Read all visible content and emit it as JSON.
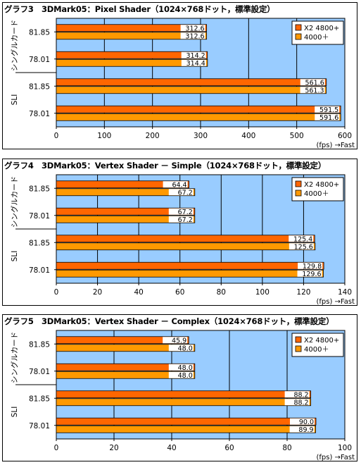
{
  "chart_data": [
    {
      "type": "bar",
      "title": "グラフ3　3DMark05：Pixel Shader（1024×768ドット，標準設定）",
      "categories": [
        "81.85",
        "78.01",
        "81.85",
        "78.01"
      ],
      "groups": [
        "シングルカード",
        "SLI"
      ],
      "series": [
        {
          "name": "X2 4800+",
          "values": [
            312.6,
            314.2,
            561.6,
            591.5
          ]
        },
        {
          "name": "4000＋",
          "values": [
            312.6,
            314.4,
            561.3,
            591.6
          ]
        }
      ],
      "value_labels": [
        [
          "312.6",
          "314.2",
          "561.6",
          "591.5"
        ],
        [
          "312.6",
          "314.4",
          "561.3",
          "591.6"
        ]
      ],
      "xlim": [
        0,
        600
      ],
      "ticks": [
        0,
        100,
        200,
        300,
        400,
        500,
        600
      ],
      "xlabel": "(fps) →Fast",
      "orientation": "horizontal",
      "grid": true,
      "legend": "top-right"
    },
    {
      "type": "bar",
      "title": "グラフ4　3DMark05：Vertex Shader － Simple（1024×768ドット，標準設定）",
      "categories": [
        "81.85",
        "78.01",
        "81.85",
        "78.01"
      ],
      "groups": [
        "シングルカード",
        "SLI"
      ],
      "series": [
        {
          "name": "X2 4800+",
          "values": [
            64.4,
            67.2,
            125.4,
            129.8
          ]
        },
        {
          "name": "4000＋",
          "values": [
            67.2,
            67.2,
            125.6,
            129.6
          ]
        }
      ],
      "value_labels": [
        [
          "64.4",
          "67.2",
          "125.4",
          "129.8"
        ],
        [
          "67.2",
          "67.2",
          "125.6",
          "129.6"
        ]
      ],
      "xlim": [
        0,
        140
      ],
      "ticks": [
        0,
        20,
        40,
        60,
        80,
        100,
        120,
        140
      ],
      "xlabel": "(fps) →Fast",
      "orientation": "horizontal",
      "grid": true,
      "legend": "top-right"
    },
    {
      "type": "bar",
      "title": "グラフ5　3DMark05：Vertex Shader － Complex（1024×768ドット，標準設定）",
      "categories": [
        "81.85",
        "78.01",
        "81.85",
        "78.01"
      ],
      "groups": [
        "シングルカード",
        "SLI"
      ],
      "series": [
        {
          "name": "X2 4800+",
          "values": [
            45.9,
            48.0,
            88.2,
            90.0
          ]
        },
        {
          "name": "4000＋",
          "values": [
            48.0,
            48.0,
            88.2,
            89.9
          ]
        }
      ],
      "value_labels": [
        [
          "45.9",
          "48.0",
          "88.2",
          "90.0"
        ],
        [
          "48.0",
          "48.0",
          "88.2",
          "89.9"
        ]
      ],
      "xlim": [
        0,
        100
      ],
      "ticks": [
        0,
        20,
        40,
        60,
        80,
        100
      ],
      "xlabel": "(fps) →Fast",
      "orientation": "horizontal",
      "grid": true,
      "legend": "top-right"
    }
  ],
  "colors": {
    "plot_background": "#99ccff",
    "series_1": "#ff6600",
    "series_2": "#ff9900",
    "bar_label_background": "#ffffff",
    "legend_background": "#ffffff"
  }
}
